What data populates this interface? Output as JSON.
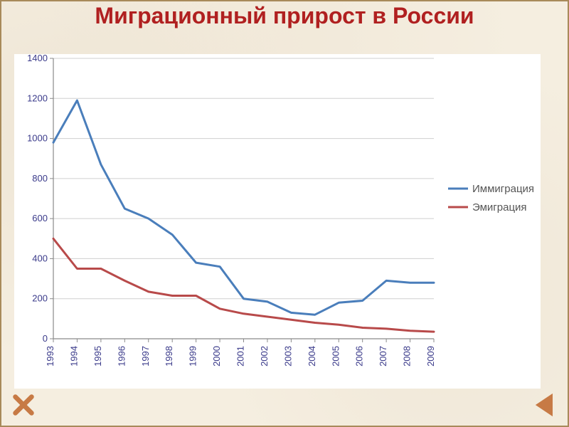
{
  "title": "Миграционный прирост в России",
  "chart": {
    "type": "line",
    "background_color": "#ffffff",
    "axis_color": "#8a8a8a",
    "grid_color": "#cfcfcf",
    "tick_font_size": 13,
    "tick_font_color": "#3a3a8a",
    "x_labels": [
      "1993",
      "1994",
      "1995",
      "1996",
      "1997",
      "1998",
      "1999",
      "2000",
      "2001",
      "2002",
      "2003",
      "2004",
      "2005",
      "2006",
      "2007",
      "2008",
      "2009"
    ],
    "x_label_rotation": -90,
    "ylim": [
      0,
      1400
    ],
    "ytick_step": 200,
    "line_width": 3,
    "series": [
      {
        "name": "Иммиграция",
        "color": "#4a7ebb",
        "values": [
          980,
          1190,
          870,
          650,
          600,
          520,
          380,
          360,
          200,
          185,
          130,
          120,
          180,
          190,
          290,
          280,
          280
        ]
      },
      {
        "name": "Эмиграция",
        "color": "#b84a4a",
        "values": [
          500,
          350,
          350,
          290,
          235,
          215,
          215,
          150,
          125,
          110,
          95,
          80,
          70,
          55,
          50,
          40,
          35
        ]
      }
    ],
    "legend": {
      "position": "right",
      "font_size": 15,
      "font_color": "#555555"
    }
  },
  "nav": {
    "close_icon_color": "#c77a45",
    "prev_icon_color": "#c77a45"
  }
}
